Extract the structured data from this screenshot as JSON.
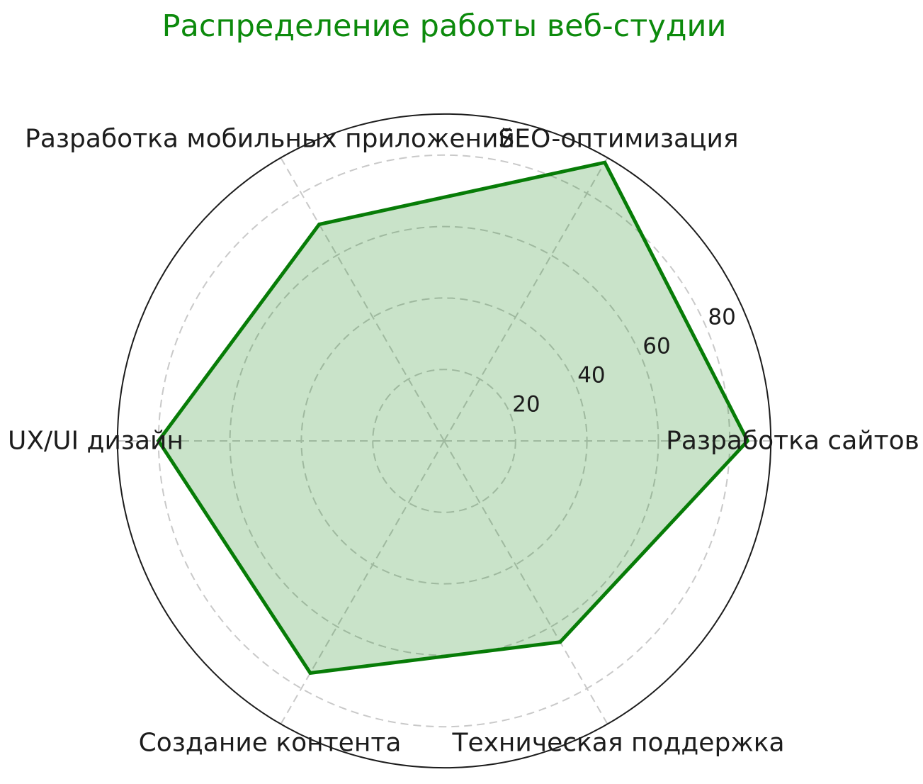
{
  "title": {
    "text": "Распределение работы веб-студии",
    "color": "#0c8a0c"
  },
  "chart_data": {
    "type": "radar",
    "title": "Распределение работы веб-студии",
    "categories": [
      "Разработка сайтов",
      "SEO-оптимизация",
      "Разработка мобильных приложений",
      "UX/UI дизайн",
      "Создание контента",
      "Техническая поддержка"
    ],
    "values": [
      85,
      90,
      70,
      80,
      75,
      65
    ],
    "radial_ticks": [
      20,
      40,
      60,
      80
    ],
    "rlim": [
      0,
      91.5
    ],
    "angle_start_deg": 0,
    "direction": "counterclockwise",
    "grid": true,
    "legend_position": "none",
    "line_color": "#077c07",
    "fill_color": "#078007",
    "fill_opacity": 0.22,
    "grid_color": "#c9c9c9",
    "outer_circle_color": "#1c1c1c",
    "text_color": "#1c1c1c"
  }
}
